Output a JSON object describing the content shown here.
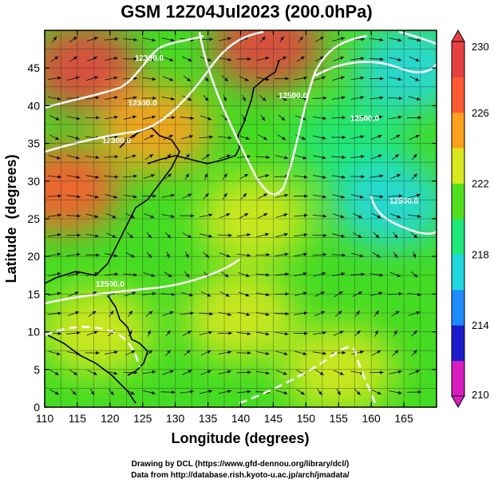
{
  "title": "GSM 12Z04Jul2023 (200.0hPa)",
  "xlabel": "Longitude (degrees)",
  "ylabel": "Latitude  (degrees)",
  "credits": [
    "Drawing by DCL (https://www.gfd-dennou.org/library/dcl/)",
    "Data from http://database.rish.kyoto-u.ac.jp/arch/jmadata/"
  ],
  "chart_data": {
    "type": "heatmap",
    "title": "GSM 12Z04Jul2023 (200.0hPa)",
    "xlabel": "Longitude (degrees)",
    "ylabel": "Latitude  (degrees)",
    "xlim": [
      110,
      170
    ],
    "ylim": [
      0,
      50
    ],
    "x_ticks": [
      "110",
      "115",
      "120",
      "125",
      "130",
      "135",
      "140",
      "145",
      "150",
      "155",
      "160",
      "165"
    ],
    "y_ticks": [
      "0",
      "5",
      "10",
      "15",
      "20",
      "25",
      "30",
      "35",
      "40",
      "45"
    ],
    "grid": true,
    "colorbar": {
      "min": 210,
      "max": 230,
      "ticks": [
        "230",
        "226",
        "222",
        "218",
        "214",
        "210"
      ],
      "colors": [
        "#d81ec0",
        "#1a1acc",
        "#1e8cff",
        "#22d8e0",
        "#1ee87a",
        "#52e01e",
        "#d8e81e",
        "#ffa01e",
        "#ff5a32",
        "#e84040"
      ]
    },
    "contour_labels": [
      "12300.0",
      "12300.0",
      "12300.0",
      "12500.0",
      "12500.0",
      "12500.0",
      "12500.0"
    ],
    "regions": [
      {
        "lon": 116,
        "lat": 45,
        "value": 229
      },
      {
        "lon": 144,
        "lat": 48,
        "value": 229
      },
      {
        "lon": 113,
        "lat": 29,
        "value": 226
      },
      {
        "lon": 127,
        "lat": 37,
        "value": 224
      },
      {
        "lon": 142,
        "lat": 25,
        "value": 223
      },
      {
        "lon": 157,
        "lat": 35,
        "value": 219
      },
      {
        "lon": 163,
        "lat": 27,
        "value": 217
      },
      {
        "lon": 166,
        "lat": 45,
        "value": 216
      },
      {
        "lon": 140,
        "lat": 12,
        "value": 222
      },
      {
        "lon": 155,
        "lat": 5,
        "value": 222
      },
      {
        "lon": 118,
        "lat": 10,
        "value": 222
      }
    ]
  }
}
